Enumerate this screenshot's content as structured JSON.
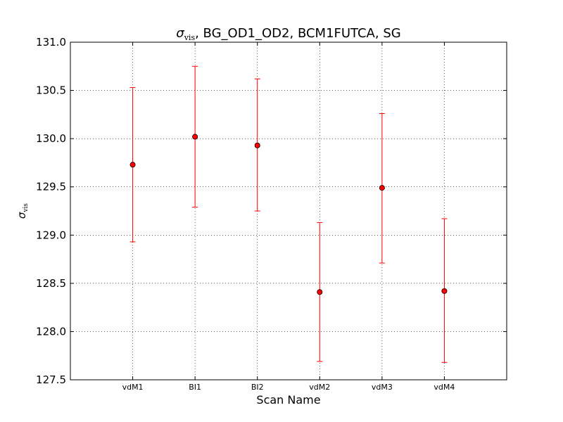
{
  "chart_data": {
    "type": "scatter",
    "title_symbol": "σ",
    "title_subscript": "vis",
    "title_rest": ", BG_OD1_OD2, BCM1FUTCA, SG",
    "xlabel": "Scan Name",
    "ylabel_symbol": "σ",
    "ylabel_subscript": "vis",
    "categories": [
      "vdM1",
      "BI1",
      "BI2",
      "vdM2",
      "vdM3",
      "vdM4"
    ],
    "values": [
      129.73,
      130.02,
      129.93,
      128.41,
      129.49,
      128.42
    ],
    "err_low": [
      128.93,
      129.29,
      129.25,
      127.69,
      128.71,
      127.68
    ],
    "err_high": [
      130.53,
      130.75,
      130.62,
      129.13,
      130.26,
      129.17
    ],
    "ylim": [
      127.5,
      131.0
    ],
    "yticks": [
      127.5,
      128.0,
      128.5,
      129.0,
      129.5,
      130.0,
      130.5,
      131.0
    ],
    "ytick_labels": [
      "127.5",
      "128.0",
      "128.5",
      "129.0",
      "129.5",
      "130.0",
      "130.5",
      "131.0"
    ],
    "grid": true,
    "marker_color": "#ff0000",
    "errorbar_color": "#ff0000"
  }
}
